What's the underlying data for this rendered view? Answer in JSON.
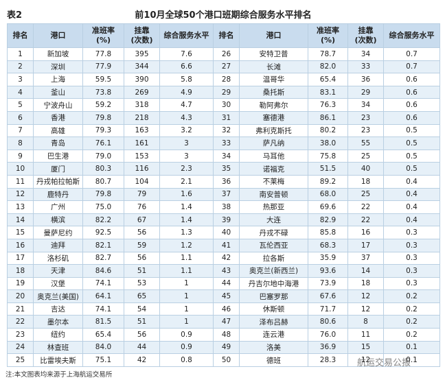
{
  "header": {
    "label": "表2",
    "title": "前10月全球50个港口班期综合服务水平排名"
  },
  "table": {
    "headers": [
      "排名",
      "港口",
      "准班率\n(%)",
      "挂靠\n(次数)",
      "综合服务水平",
      "排名",
      "港口",
      "准班率\n(%)",
      "挂靠\n(次数)",
      "综合服务水平"
    ],
    "rows": [
      [
        "1",
        "新加坡",
        "77.8",
        "395",
        "7.6",
        "26",
        "安特卫普",
        "78.7",
        "34",
        "0.7"
      ],
      [
        "2",
        "深圳",
        "77.9",
        "344",
        "6.6",
        "27",
        "长滩",
        "82.0",
        "33",
        "0.7"
      ],
      [
        "3",
        "上海",
        "59.5",
        "390",
        "5.8",
        "28",
        "温哥华",
        "65.4",
        "36",
        "0.6"
      ],
      [
        "4",
        "釜山",
        "73.8",
        "269",
        "4.9",
        "29",
        "桑托斯",
        "83.1",
        "29",
        "0.6"
      ],
      [
        "5",
        "宁波舟山",
        "59.2",
        "318",
        "4.7",
        "30",
        "勒阿弗尔",
        "76.3",
        "34",
        "0.6"
      ],
      [
        "6",
        "香港",
        "79.8",
        "218",
        "4.3",
        "31",
        "塞德港",
        "86.1",
        "23",
        "0.6"
      ],
      [
        "7",
        "高雄",
        "79.3",
        "163",
        "3.2",
        "32",
        "弗利克斯托",
        "80.2",
        "23",
        "0.5"
      ],
      [
        "8",
        "青岛",
        "76.1",
        "161",
        "3",
        "33",
        "萨凡纳",
        "38.0",
        "55",
        "0.5"
      ],
      [
        "9",
        "巴生港",
        "79.0",
        "153",
        "3",
        "34",
        "马耳他",
        "75.8",
        "25",
        "0.5"
      ],
      [
        "10",
        "厦门",
        "80.3",
        "116",
        "2.3",
        "35",
        "诺福克",
        "51.5",
        "40",
        "0.5"
      ],
      [
        "11",
        "丹戎帕拉帕斯",
        "80.7",
        "104",
        "2.1",
        "36",
        "不莱梅",
        "89.2",
        "18",
        "0.4"
      ],
      [
        "12",
        "鹿特丹",
        "79.8",
        "79",
        "1.6",
        "37",
        "南安普顿",
        "68.0",
        "25",
        "0.4"
      ],
      [
        "13",
        "广州",
        "75.0",
        "76",
        "1.4",
        "38",
        "热那亚",
        "69.6",
        "22",
        "0.4"
      ],
      [
        "14",
        "横滨",
        "82.2",
        "67",
        "1.4",
        "39",
        "大连",
        "82.9",
        "22",
        "0.4"
      ],
      [
        "15",
        "曼萨尼约",
        "92.5",
        "56",
        "1.3",
        "40",
        "丹戎不碌",
        "85.8",
        "16",
        "0.3"
      ],
      [
        "16",
        "迪拜",
        "82.1",
        "59",
        "1.2",
        "41",
        "瓦伦西亚",
        "68.3",
        "17",
        "0.3"
      ],
      [
        "17",
        "洛杉矶",
        "82.7",
        "56",
        "1.1",
        "42",
        "拉各斯",
        "35.9",
        "37",
        "0.3"
      ],
      [
        "18",
        "天津",
        "84.6",
        "51",
        "1.1",
        "43",
        "奥克兰(新西兰)",
        "93.6",
        "14",
        "0.3"
      ],
      [
        "19",
        "汉堡",
        "74.1",
        "53",
        "1",
        "44",
        "丹吉尔地中海港",
        "73.9",
        "18",
        "0.3"
      ],
      [
        "20",
        "奥克兰(美国)",
        "64.1",
        "65",
        "1",
        "45",
        "巴塞罗那",
        "67.6",
        "12",
        "0.2"
      ],
      [
        "21",
        "吉达",
        "74.1",
        "54",
        "1",
        "46",
        "休斯顿",
        "71.7",
        "12",
        "0.2"
      ],
      [
        "22",
        "墨尔本",
        "81.5",
        "51",
        "1",
        "47",
        "泽布吕赫",
        "80.6",
        "8",
        "0.2"
      ],
      [
        "23",
        "纽约",
        "65.4",
        "56",
        "0.9",
        "48",
        "连云港",
        "76.0",
        "11",
        "0.2"
      ],
      [
        "24",
        "林查班",
        "84.0",
        "44",
        "0.9",
        "49",
        "洛美",
        "36.9",
        "15",
        "0.1"
      ],
      [
        "25",
        "比雷埃夫斯",
        "75.1",
        "42",
        "0.8",
        "50",
        "德班",
        "28.3",
        "12",
        "0.1"
      ]
    ]
  },
  "footnote": "注:本文图表均来源于上海航运交易所",
  "watermark": "航运交易公报"
}
